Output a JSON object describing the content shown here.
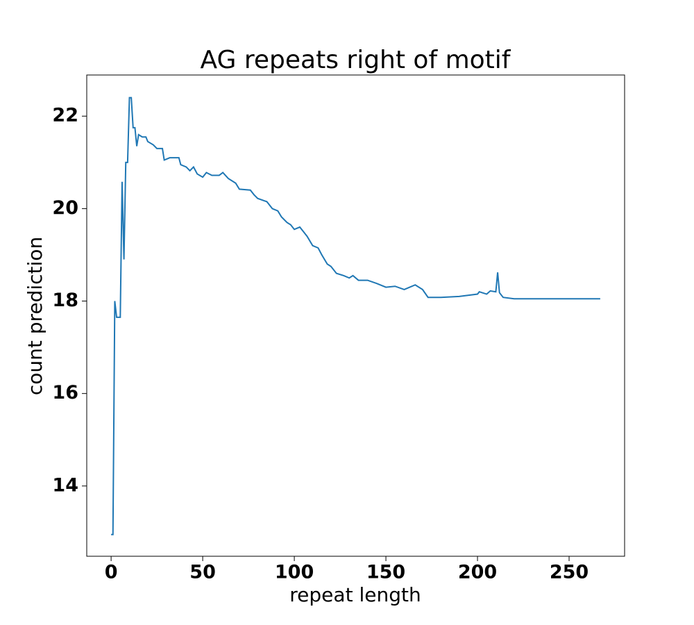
{
  "chart_data": {
    "type": "line",
    "title": "AG repeats right of motif",
    "x_label": "repeat length",
    "y_label": "count prediction",
    "x": [
      0,
      1,
      2,
      3,
      4,
      5,
      6,
      7,
      8,
      9,
      10,
      11,
      12,
      13,
      14,
      15,
      17,
      19,
      20,
      23,
      25,
      28,
      29,
      32,
      37,
      38,
      41,
      43,
      45,
      47,
      50,
      52,
      55,
      59,
      61,
      64,
      68,
      70,
      76,
      78,
      80,
      85,
      88,
      91,
      93,
      96,
      98,
      100,
      103,
      105,
      107,
      110,
      113,
      115,
      118,
      120,
      123,
      127,
      130,
      132,
      135,
      140,
      145,
      150,
      155,
      160,
      163,
      166,
      170,
      173,
      180,
      190,
      200,
      201,
      205,
      207,
      210,
      211,
      212,
      214,
      220,
      230,
      240,
      250,
      260,
      267
    ],
    "series": [
      {
        "name": "count prediction",
        "color": "#1f77b4",
        "values": [
          12.95,
          12.95,
          18.0,
          17.65,
          17.65,
          17.65,
          20.58,
          18.9,
          21.0,
          21.0,
          22.4,
          22.4,
          21.75,
          21.75,
          21.35,
          21.6,
          21.55,
          21.55,
          21.45,
          21.38,
          21.3,
          21.3,
          21.05,
          21.1,
          21.1,
          20.95,
          20.9,
          20.82,
          20.9,
          20.75,
          20.68,
          20.78,
          20.72,
          20.72,
          20.78,
          20.65,
          20.55,
          20.42,
          20.4,
          20.3,
          20.22,
          20.15,
          20.0,
          19.95,
          19.82,
          19.7,
          19.65,
          19.55,
          19.6,
          19.5,
          19.4,
          19.2,
          19.15,
          19.0,
          18.8,
          18.75,
          18.6,
          18.55,
          18.5,
          18.55,
          18.45,
          18.45,
          18.38,
          18.3,
          18.32,
          18.25,
          18.3,
          18.35,
          18.25,
          18.08,
          18.08,
          18.1,
          18.15,
          18.2,
          18.15,
          18.22,
          18.2,
          18.62,
          18.18,
          18.08,
          18.05,
          18.05,
          18.05,
          18.05,
          18.05,
          18.05
        ]
      }
    ],
    "xlim": [
      -13.3,
      280.3
    ],
    "ylim": [
      12.48,
      22.89
    ],
    "xticks": [
      0,
      50,
      100,
      150,
      200,
      250
    ],
    "yticks": [
      14,
      16,
      18,
      20,
      22
    ]
  }
}
